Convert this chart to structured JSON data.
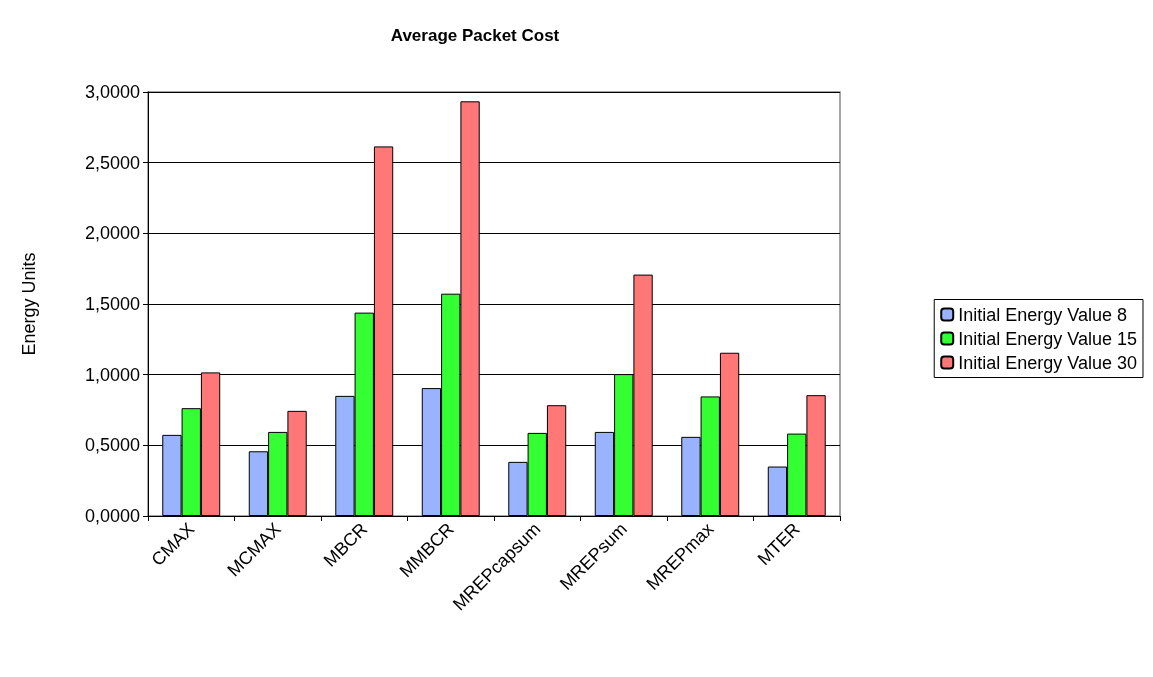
{
  "chart_data": {
    "type": "bar",
    "title": "Average Packet Cost",
    "ylabel": "Energy Units",
    "categories": [
      "CMAX",
      "MCMAX",
      "MBCR",
      "MMBCR",
      "MREPcapsum",
      "MREPsum",
      "MREPmax",
      "MTER"
    ],
    "series": [
      {
        "name": "Initial Energy Value 8",
        "color": "#99b3ff",
        "values": [
          0.574,
          0.458,
          0.85,
          0.905,
          0.383,
          0.595,
          0.56,
          0.35
        ]
      },
      {
        "name": "Initial Energy Value 15",
        "color": "#33ff33",
        "values": [
          0.763,
          0.595,
          1.439,
          1.573,
          0.588,
          1.004,
          0.846,
          0.583
        ]
      },
      {
        "name": "Initial Energy Value 30",
        "color": "#ff7777",
        "values": [
          1.016,
          0.744,
          2.615,
          2.934,
          0.784,
          1.708,
          1.155,
          0.855
        ]
      }
    ],
    "ylim": [
      0,
      3
    ],
    "yticks": [
      {
        "value": 0,
        "label": "0,0000"
      },
      {
        "value": 0.5,
        "label": "0,5000"
      },
      {
        "value": 1,
        "label": "1,0000"
      },
      {
        "value": 1.5,
        "label": "1,5000"
      },
      {
        "value": 2,
        "label": "2,0000"
      },
      {
        "value": 2.5,
        "label": "2,5000"
      },
      {
        "value": 3,
        "label": "3,0000"
      }
    ],
    "grid": "y",
    "legend": "right"
  }
}
